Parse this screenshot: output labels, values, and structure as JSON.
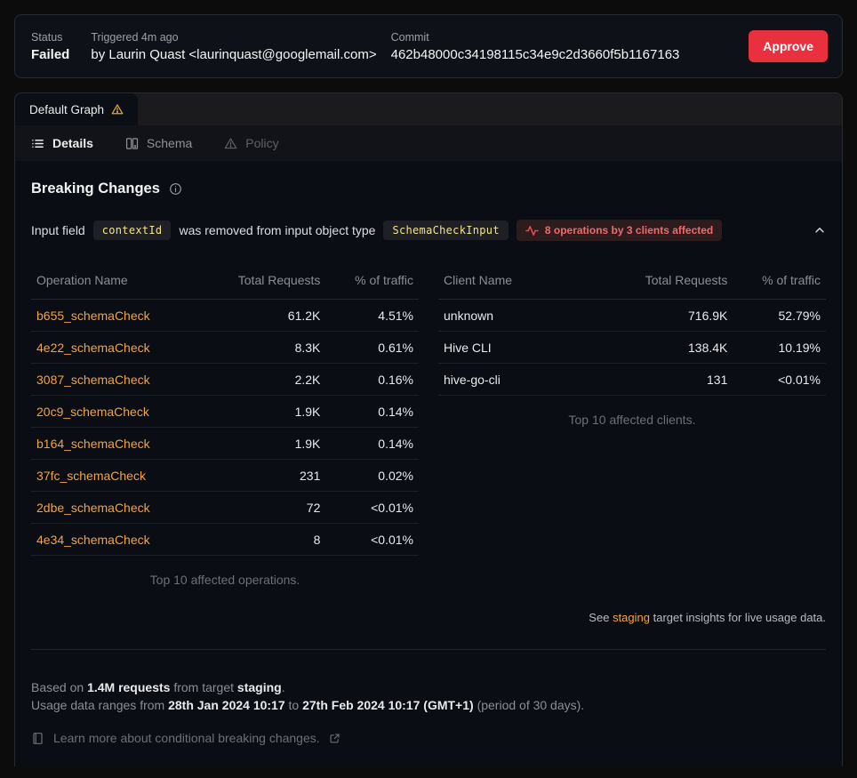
{
  "header": {
    "status_label": "Status",
    "status_value": "Failed",
    "triggered_label": "Triggered 4m ago",
    "triggered_by": "by Laurin Quast <laurinquast@googlemail.com>",
    "commit_label": "Commit",
    "commit_value": "462b48000c34198115c34e9c2d3660f5b1167163",
    "approve_label": "Approve"
  },
  "graph_tab": {
    "label": "Default Graph"
  },
  "tabs": [
    {
      "label": "Details"
    },
    {
      "label": "Schema"
    },
    {
      "label": "Policy"
    }
  ],
  "breaking_changes": {
    "title": "Breaking Changes",
    "change": {
      "prefix": "Input field",
      "field_code": "contextId",
      "middle": "was removed from input object type",
      "type_code": "SchemaCheckInput",
      "affected_badge": "8 operations by 3 clients affected"
    },
    "operations_table": {
      "headers": [
        "Operation Name",
        "Total Requests",
        "% of traffic"
      ],
      "rows": [
        [
          "b655_schemaCheck",
          "61.2K",
          "4.51%"
        ],
        [
          "4e22_schemaCheck",
          "8.3K",
          "0.61%"
        ],
        [
          "3087_schemaCheck",
          "2.2K",
          "0.16%"
        ],
        [
          "20c9_schemaCheck",
          "1.9K",
          "0.14%"
        ],
        [
          "b164_schemaCheck",
          "1.9K",
          "0.14%"
        ],
        [
          "37fc_schemaCheck",
          "231",
          "0.02%"
        ],
        [
          "2dbe_schemaCheck",
          "72",
          "<0.01%"
        ],
        [
          "4e34_schemaCheck",
          "8",
          "<0.01%"
        ]
      ],
      "caption": "Top 10 affected operations."
    },
    "clients_table": {
      "headers": [
        "Client Name",
        "Total Requests",
        "% of traffic"
      ],
      "rows": [
        [
          "unknown",
          "716.9K",
          "52.79%"
        ],
        [
          "Hive CLI",
          "138.4K",
          "10.19%"
        ],
        [
          "hive-go-cli",
          "131",
          "<0.01%"
        ]
      ],
      "caption": "Top 10 affected clients."
    },
    "insights_note": {
      "see": "See",
      "link": "staging",
      "rest": "target insights for live usage data."
    }
  },
  "footer": {
    "based_prefix": "Based on",
    "requests": "1.4M requests",
    "from_target": "from target",
    "target": "staging",
    "dot": ".",
    "period_prefix": "Usage data ranges from",
    "start": "28th Jan 2024 10:17",
    "to": "to",
    "end": "27th Feb 2024 10:17 (GMT+1)",
    "period_suffix": "(period of 30 days).",
    "learn_more": "Learn more about conditional breaking changes."
  },
  "colors": {
    "accent_orange": "#f4a43f",
    "code_yellow": "#f2e290",
    "danger_red": "#e9303e",
    "badge_red_text": "#f2696d",
    "warning_yellow": "#e0aa3e",
    "card_bg": "#0a0d14",
    "page_bg": "#0c0c0d"
  }
}
